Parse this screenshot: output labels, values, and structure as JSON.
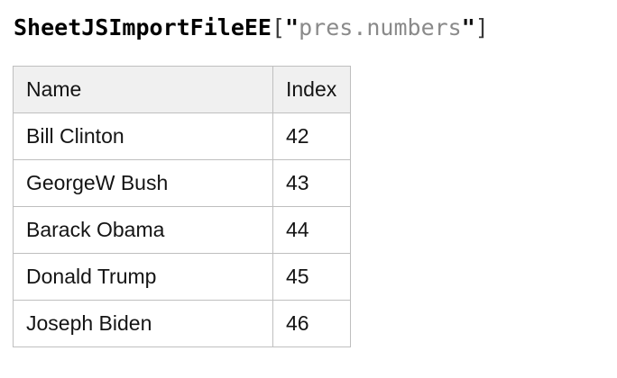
{
  "title": {
    "function_name": "SheetJSImportFileEE",
    "bracket_open": "[",
    "quote_open": "\"",
    "file_name": "pres.numbers",
    "quote_close": "\"",
    "bracket_close": "]"
  },
  "table": {
    "columns": [
      "Name",
      "Index"
    ],
    "rows": [
      {
        "name": "Bill Clinton",
        "index": "42"
      },
      {
        "name": "GeorgeW Bush",
        "index": "43"
      },
      {
        "name": "Barack Obama",
        "index": "44"
      },
      {
        "name": "Donald Trump",
        "index": "45"
      },
      {
        "name": "Joseph Biden",
        "index": "46"
      }
    ]
  },
  "colors": {
    "header_background": "#f0f0f0",
    "table_border": "#bfbfbf",
    "string_literal": "#8a8a8a",
    "text": "#141414"
  }
}
